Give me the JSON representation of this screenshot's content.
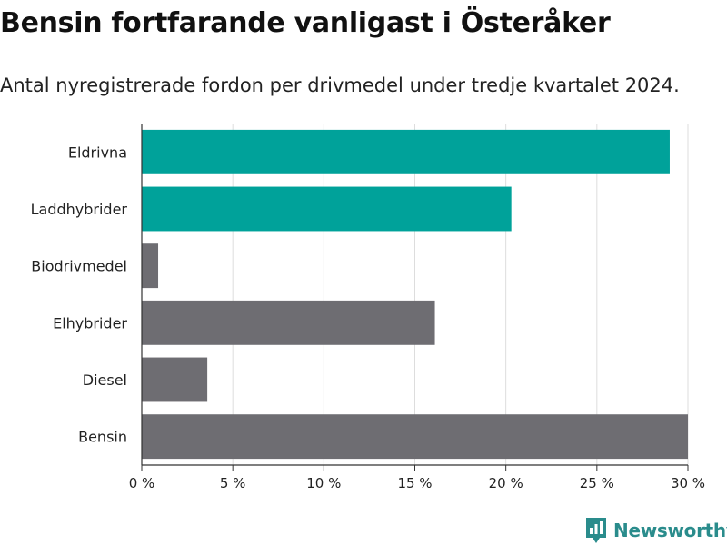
{
  "header": {
    "title": "Bensin fortfarande vanligast i Österåker",
    "subtitle": "Antal nyregistrerade fordon per drivmedel under tredje kvartalet 2024."
  },
  "brand": {
    "name": "Newsworthy"
  },
  "colors": {
    "highlight": "#00a29a",
    "default": "#6e6d72",
    "grid": "#dddddd",
    "axis": "#333333",
    "brand": "#2a8c8c"
  },
  "chart_data": {
    "type": "bar",
    "orientation": "horizontal",
    "title": "Bensin fortfarande vanligast i Österåker",
    "subtitle": "Antal nyregistrerade fordon per drivmedel under tredje kvartalet 2024.",
    "xlabel": "",
    "ylabel": "",
    "categories": [
      "Eldrivna",
      "Laddhybrider",
      "Biodrivmedel",
      "Elhybrider",
      "Diesel",
      "Bensin"
    ],
    "values": [
      29.0,
      20.3,
      0.9,
      16.1,
      3.6,
      30.0
    ],
    "highlight": [
      true,
      true,
      false,
      false,
      false,
      false
    ],
    "xlim": [
      0,
      30
    ],
    "ticks": [
      0,
      5,
      10,
      15,
      20,
      25,
      30
    ],
    "tick_labels": [
      "0 %",
      "5 %",
      "10 %",
      "15 %",
      "20 %",
      "25 %",
      "30 %"
    ],
    "grid": true,
    "legend": "none"
  }
}
